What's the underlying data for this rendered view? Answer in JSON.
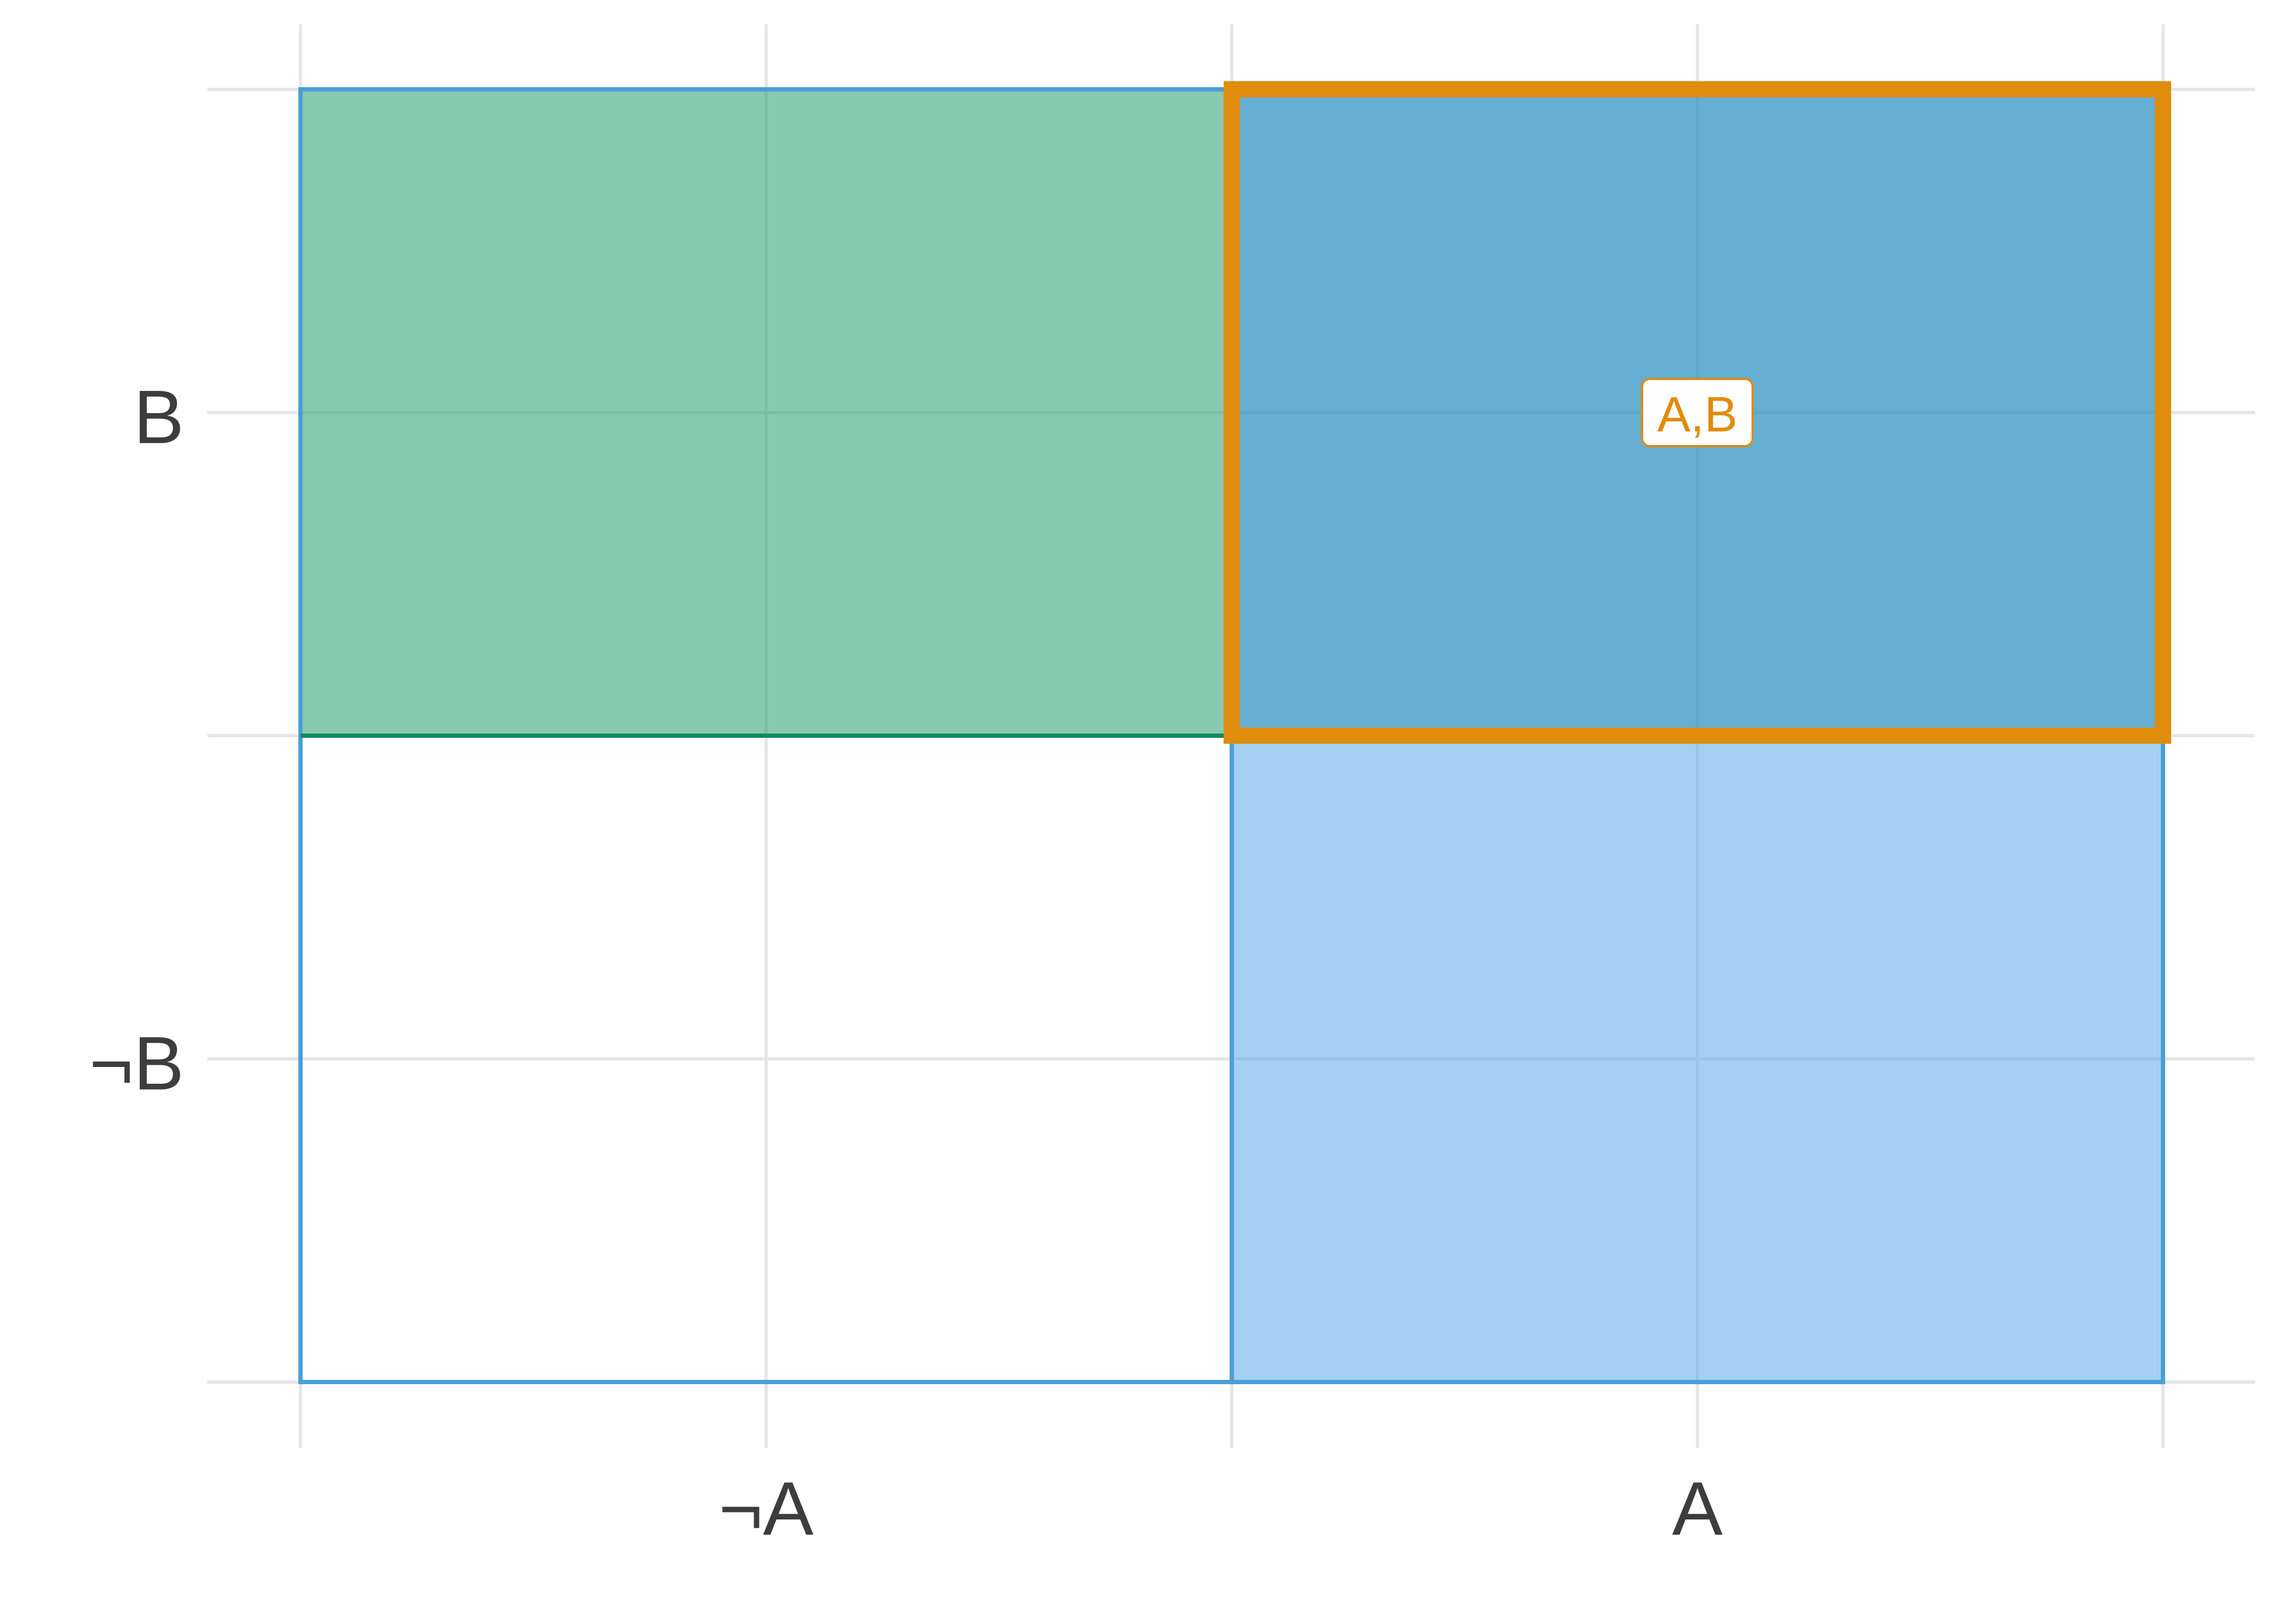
{
  "diagram": {
    "x_ticks": [
      "¬A",
      "A"
    ],
    "y_ticks": [
      "B",
      "¬B"
    ],
    "cells": [
      {
        "col": "¬A",
        "row": "B",
        "fill": "#1a9a68",
        "opacity": 0.52,
        "border": "#4a9fd8"
      },
      {
        "col": "A",
        "row": "B",
        "fill": "#2b8fc0",
        "opacity": 0.72,
        "border": "#4a9fd8"
      },
      {
        "col": "¬A",
        "row": "¬B",
        "fill": "#ffffff",
        "opacity": 0.0,
        "border": "#4a9fd8"
      },
      {
        "col": "A",
        "row": "¬B",
        "fill": "#5aa9e6",
        "opacity": 0.55,
        "border": "#4a9fd8"
      }
    ],
    "highlight": {
      "col": "A",
      "row": "B",
      "color": "#e08c0c",
      "label": "A,B"
    },
    "region_B_edge_color": "#128a5e",
    "grid_color": "#e6e6e6"
  }
}
